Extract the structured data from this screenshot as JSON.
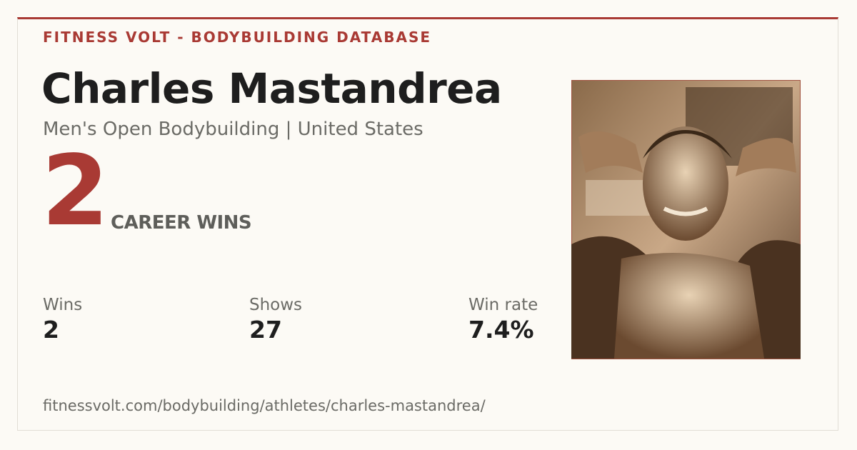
{
  "header": {
    "brand": "FITNESS VOLT - BODYBUILDING DATABASE"
  },
  "athlete": {
    "name": "Charles Mastandrea",
    "subtitle": "Men's Open Bodybuilding | United States"
  },
  "highlight": {
    "value": "2",
    "label": "CAREER WINS"
  },
  "stats": [
    {
      "label": "Wins",
      "value": "2"
    },
    {
      "label": "Shows",
      "value": "27"
    },
    {
      "label": "Win rate",
      "value": "7.4%"
    }
  ],
  "footer": {
    "url": "fitnessvolt.com/bodybuilding/athletes/charles-mastandrea/"
  }
}
